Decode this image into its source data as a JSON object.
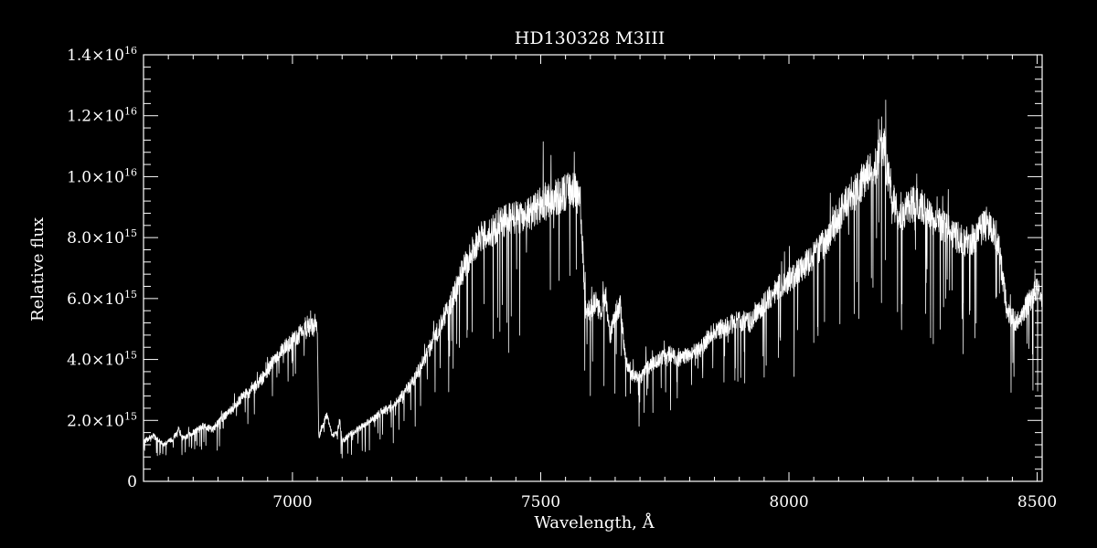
{
  "chart_data": {
    "type": "line",
    "title": "HD130328   M3III",
    "xlabel": "Wavelength, Å",
    "ylabel": "Relative flux",
    "xlim": [
      6700,
      8510
    ],
    "ylim": [
      0,
      1.4e+16
    ],
    "grid": false,
    "x_ticks": [
      7000,
      7500,
      8000,
      8500
    ],
    "x_tick_labels": [
      "7000",
      "7500",
      "8000",
      "8500"
    ],
    "y_ticks": [
      0,
      2000000000000000.0,
      4000000000000000.0,
      6000000000000000.0,
      8000000000000000.0,
      1e+16,
      1.2e+16,
      1.4e+16
    ],
    "y_tick_labels": [
      {
        "mant": "0",
        "exp": ""
      },
      {
        "mant": "2.0×10",
        "exp": "15"
      },
      {
        "mant": "4.0×10",
        "exp": "15"
      },
      {
        "mant": "6.0×10",
        "exp": "15"
      },
      {
        "mant": "8.0×10",
        "exp": "15"
      },
      {
        "mant": "1.0×10",
        "exp": "16"
      },
      {
        "mant": "1.2×10",
        "exp": "16"
      },
      {
        "mant": "1.4×10",
        "exp": "16"
      }
    ],
    "colors": {
      "background": "#000000",
      "foreground": "#ffffff"
    },
    "series": [
      {
        "x": [
          6700,
          6720,
          6740,
          6760,
          6770,
          6780,
          6800,
          6820,
          6840,
          6860,
          6880,
          6900,
          6920,
          6940,
          6960,
          6980,
          7000,
          7020,
          7040,
          7050,
          7053,
          7058,
          7070,
          7080,
          7090,
          7095,
          7100,
          7120,
          7140,
          7160,
          7180,
          7200,
          7220,
          7240,
          7260,
          7280,
          7300,
          7320,
          7340,
          7360,
          7380,
          7400,
          7420,
          7440,
          7460,
          7480,
          7500,
          7520,
          7540,
          7560,
          7570,
          7580,
          7590,
          7600,
          7610,
          7620,
          7630,
          7640,
          7650,
          7660,
          7670,
          7680,
          7700,
          7720,
          7740,
          7760,
          7780,
          7800,
          7820,
          7840,
          7860,
          7880,
          7900,
          7920,
          7940,
          7960,
          7980,
          8000,
          8020,
          8040,
          8060,
          8080,
          8100,
          8120,
          8140,
          8160,
          8170,
          8180,
          8190,
          8200,
          8210,
          8220,
          8240,
          8260,
          8280,
          8300,
          8320,
          8340,
          8360,
          8380,
          8400,
          8420,
          8440,
          8460,
          8480,
          8500,
          8510
        ],
        "y": [
          1300000000000000.0,
          1500000000000000.0,
          1200000000000000.0,
          1400000000000000.0,
          1700000000000000.0,
          1400000000000000.0,
          1600000000000000.0,
          1800000000000000.0,
          1700000000000000.0,
          2100000000000000.0,
          2400000000000000.0,
          2800000000000000.0,
          3000000000000000.0,
          3400000000000000.0,
          3900000000000000.0,
          4300000000000000.0,
          4600000000000000.0,
          4900000000000000.0,
          5100000000000000.0,
          5000000000000000.0,
          1400000000000000.0,
          1700000000000000.0,
          2200000000000000.0,
          1500000000000000.0,
          1600000000000000.0,
          2000000000000000.0,
          1300000000000000.0,
          1600000000000000.0,
          1800000000000000.0,
          2000000000000000.0,
          2300000000000000.0,
          2400000000000000.0,
          2800000000000000.0,
          3200000000000000.0,
          3800000000000000.0,
          4500000000000000.0,
          5200000000000000.0,
          5900000000000000.0,
          6800000000000000.0,
          7500000000000000.0,
          8000000000000000.0,
          8200000000000000.0,
          8500000000000000.0,
          8600000000000000.0,
          8700000000000000.0,
          8800000000000000.0,
          9100000000000000.0,
          9200000000000000.0,
          9400000000000000.0,
          9600000000000000.0,
          9500000000000000.0,
          9200000000000000.0,
          5800000000000000.0,
          5600000000000000.0,
          5900000000000000.0,
          5500000000000000.0,
          6200000000000000.0,
          4800000000000000.0,
          5500000000000000.0,
          5800000000000000.0,
          4100000000000000.0,
          3500000000000000.0,
          3400000000000000.0,
          3800000000000000.0,
          4000000000000000.0,
          4200000000000000.0,
          4000000000000000.0,
          4200000000000000.0,
          4300000000000000.0,
          4800000000000000.0,
          5000000000000000.0,
          5100000000000000.0,
          5300000000000000.0,
          5200000000000000.0,
          5600000000000000.0,
          6000000000000000.0,
          6400000000000000.0,
          6600000000000000.0,
          6900000000000000.0,
          7200000000000000.0,
          7600000000000000.0,
          8000000000000000.0,
          8700000000000000.0,
          9300000000000000.0,
          9600000000000000.0,
          1.01e+16,
          1.03e+16,
          1.07e+16,
          1.11e+16,
          1e+16,
          9300000000000000.0,
          8600000000000000.0,
          9000000000000000.0,
          9200000000000000.0,
          8700000000000000.0,
          8500000000000000.0,
          8300000000000000.0,
          8000000000000000.0,
          7800000000000000.0,
          8100000000000000.0,
          8500000000000000.0,
          8000000000000000.0,
          5500000000000000.0,
          5200000000000000.0,
          5800000000000000.0,
          6300000000000000.0,
          5900000000000000.0
        ]
      }
    ]
  }
}
